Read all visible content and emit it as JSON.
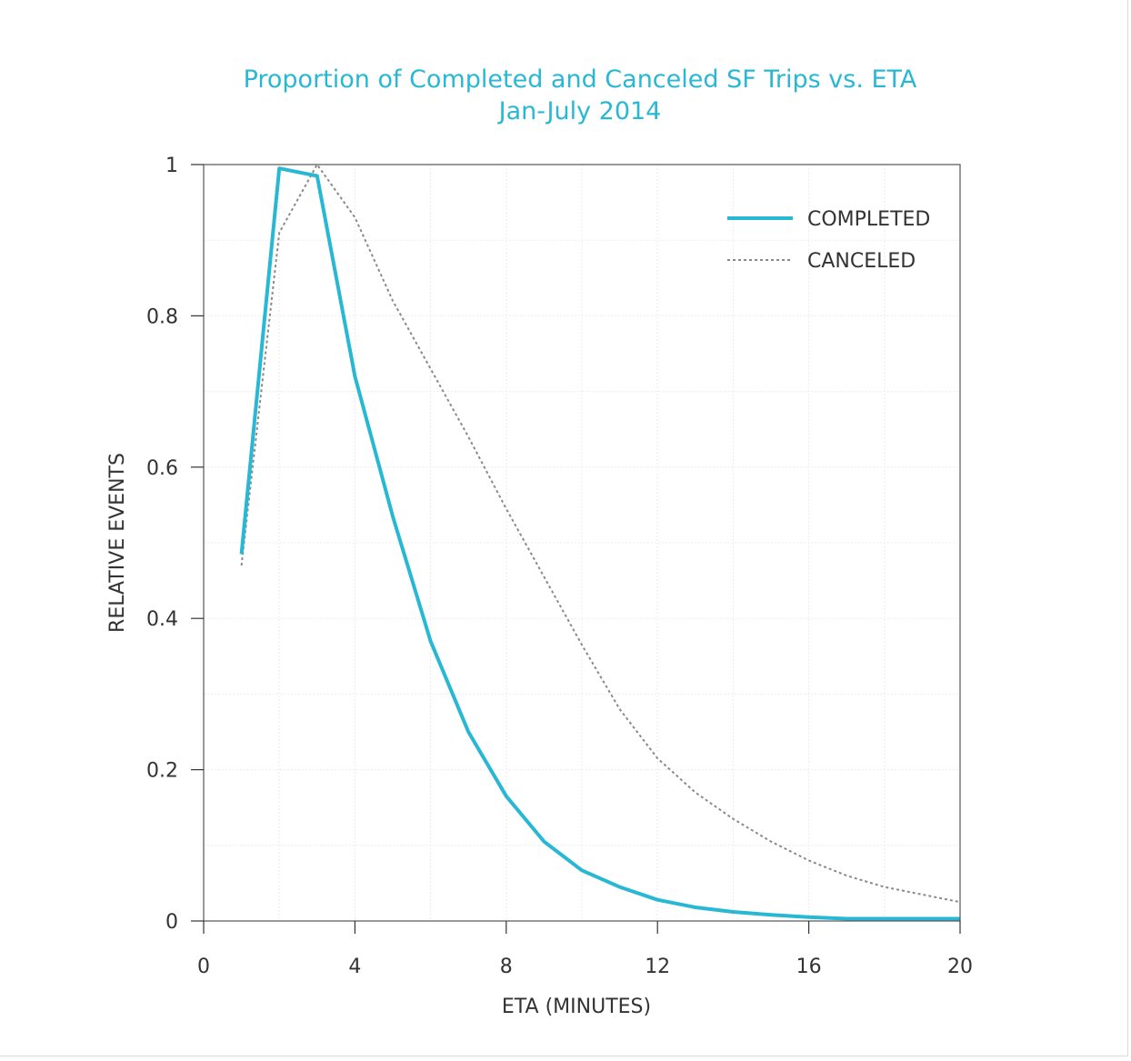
{
  "chart_data": {
    "type": "line",
    "title": "Proportion of Completed and Canceled SF Trips vs. ETA",
    "subtitle": "Jan-July 2014",
    "xlabel": "ETA (MINUTES)",
    "ylabel": "RELATIVE EVENTS",
    "xlim": [
      0,
      20
    ],
    "ylim": [
      0,
      1
    ],
    "xticks": [
      0,
      4,
      8,
      12,
      16,
      20
    ],
    "xtick_labels": [
      "0",
      "4",
      "8",
      "12",
      "16",
      "20"
    ],
    "yticks": [
      0,
      0.2,
      0.4,
      0.6,
      0.8,
      1
    ],
    "ytick_labels": [
      "0",
      "0.2",
      "0.4",
      "0.6",
      "0.8",
      "1"
    ],
    "grid": true,
    "legend_position": "top-right",
    "series": [
      {
        "name": "COMPLETED",
        "style": "solid",
        "color": "#29b8d3",
        "x": [
          1,
          2,
          3,
          4,
          5,
          6,
          7,
          8,
          9,
          10,
          11,
          12,
          13,
          14,
          15,
          16,
          17,
          18,
          19,
          20
        ],
        "y": [
          0.485,
          0.995,
          0.985,
          0.72,
          0.535,
          0.37,
          0.25,
          0.165,
          0.105,
          0.067,
          0.045,
          0.028,
          0.018,
          0.012,
          0.008,
          0.005,
          0.003,
          0.003,
          0.003,
          0.003
        ]
      },
      {
        "name": "CANCELED",
        "style": "dotted",
        "color": "#8a8a8a",
        "x": [
          1,
          2,
          3,
          4,
          5,
          6,
          7,
          8,
          9,
          10,
          11,
          12,
          13,
          14,
          15,
          16,
          17,
          18,
          19,
          20
        ],
        "y": [
          0.47,
          0.91,
          1.0,
          0.93,
          0.82,
          0.73,
          0.64,
          0.545,
          0.455,
          0.365,
          0.28,
          0.215,
          0.17,
          0.135,
          0.105,
          0.08,
          0.06,
          0.045,
          0.035,
          0.025
        ]
      }
    ]
  }
}
